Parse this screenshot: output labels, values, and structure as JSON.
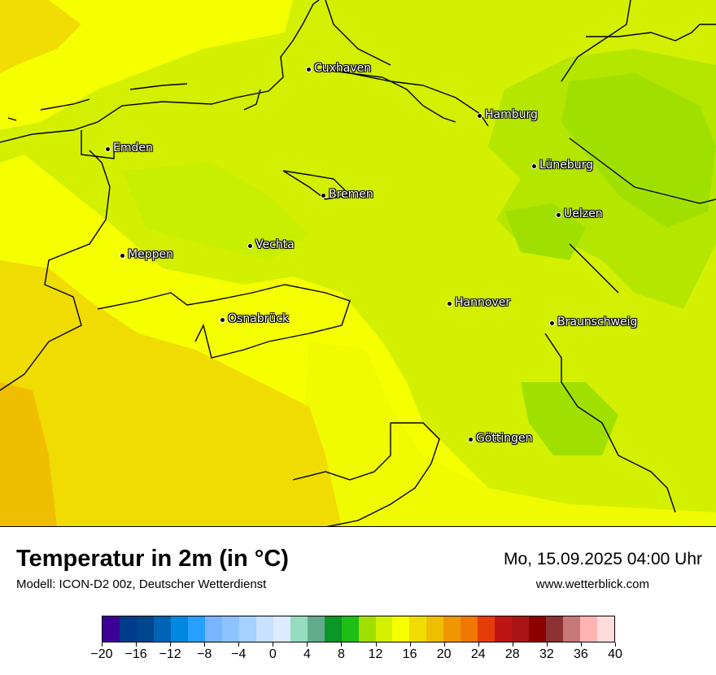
{
  "map": {
    "cities": [
      {
        "name": "Cuxhaven"
      },
      {
        "name": "Hamburg"
      },
      {
        "name": "Emden"
      },
      {
        "name": "Lüneburg"
      },
      {
        "name": "Bremen"
      },
      {
        "name": "Uelzen"
      },
      {
        "name": "Vechta"
      },
      {
        "name": "Meppen"
      },
      {
        "name": "Hannover"
      },
      {
        "name": "Osnabrück"
      },
      {
        "name": "Braunschweig"
      },
      {
        "name": "Göttingen"
      }
    ],
    "colors": {
      "base_green_yellow": "#d4f000",
      "green": "#a8e000",
      "yellow": "#f5ff00",
      "gold": "#f0d000",
      "orange": "#f0b800",
      "coast": "#000000"
    }
  },
  "header": {
    "title": "Temperatur in 2m (in °C)",
    "model": "Modell: ICON-D2 00z, Deutscher Wetterdienst",
    "datetime": "Mo, 15.09.2025 04:00 Uhr",
    "site": "www.wetterblick.com"
  },
  "legend": {
    "colors": [
      "#3c0096",
      "#003c8c",
      "#00468c",
      "#0064b4",
      "#0088e0",
      "#28a0ff",
      "#78b4ff",
      "#8cc3ff",
      "#a5d2ff",
      "#c8e1ff",
      "#dcebff",
      "#96dcbe",
      "#64aa8c",
      "#0a9628",
      "#1ebe14",
      "#a0e000",
      "#d2f000",
      "#f5ff00",
      "#f0dc00",
      "#f0be00",
      "#f09600",
      "#f07800",
      "#e63c0a",
      "#be1414",
      "#aa1414",
      "#8c0000",
      "#8c3232",
      "#c87878",
      "#ffb4b4",
      "#ffdcdc"
    ],
    "labels": [
      "−20",
      "−16",
      "−12",
      "−8",
      "−4",
      "0",
      "4",
      "8",
      "12",
      "16",
      "20",
      "24",
      "28",
      "32",
      "36",
      "40"
    ]
  }
}
